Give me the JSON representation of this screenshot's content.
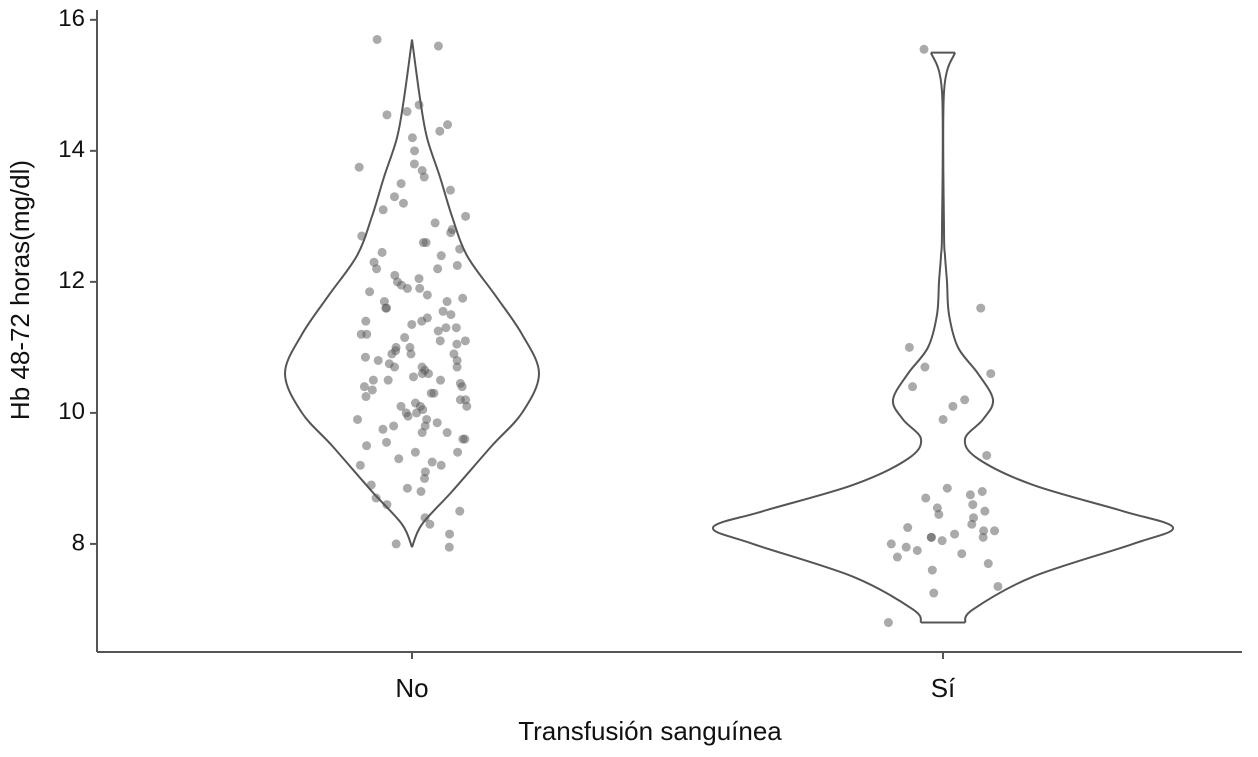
{
  "chart_data": {
    "type": "violin",
    "x_label": "Transfusión sanguínea",
    "y_label": "Hb 48-72 horas(mg/dl)",
    "categories": [
      "No",
      "Sí"
    ],
    "ylim": [
      6.35,
      16.15
    ],
    "yticks": [
      8,
      10,
      12,
      14,
      16
    ],
    "line_color": "#555555",
    "point_color": "#555555",
    "violins": [
      {
        "y": [
          7.95,
          8.3,
          8.8,
          9.5,
          10.0,
          10.6,
          11.2,
          11.8,
          12.4,
          13.0,
          13.6,
          14.2,
          14.8,
          15.7
        ],
        "density": [
          0,
          0.1,
          0.4,
          0.8,
          1.1,
          1.27,
          1.1,
          0.83,
          0.55,
          0.4,
          0.28,
          0.15,
          0.08,
          0
        ],
        "points": [
          15.7,
          15.6,
          14.7,
          14.6,
          14.55,
          14.4,
          14.3,
          14.2,
          14.0,
          13.8,
          13.75,
          13.7,
          13.6,
          13.5,
          13.4,
          13.3,
          13.2,
          13.1,
          13.0,
          12.9,
          12.8,
          12.75,
          12.7,
          12.6,
          12.5,
          12.45,
          12.4,
          12.3,
          12.25,
          12.2,
          12.1,
          12.05,
          12.0,
          11.95,
          11.9,
          11.85,
          11.8,
          11.75,
          11.7,
          11.6,
          11.55,
          11.5,
          11.45,
          11.4,
          11.35,
          11.3,
          11.25,
          11.2,
          11.15,
          11.1,
          11.05,
          11.0,
          10.95,
          10.9,
          10.85,
          10.8,
          10.75,
          10.7,
          10.65,
          10.6,
          10.55,
          10.5,
          10.45,
          10.4,
          10.35,
          10.3,
          10.25,
          10.2,
          10.15,
          10.1,
          10.05,
          10.0,
          9.95,
          9.9,
          9.85,
          9.8,
          9.75,
          9.7,
          9.6,
          9.55,
          9.5,
          9.4,
          9.3,
          9.25,
          9.2,
          9.1,
          9.0,
          8.9,
          8.85,
          8.8,
          8.7,
          8.6,
          8.5,
          8.4,
          8.3,
          8.15,
          8.0,
          7.95,
          11.9,
          11.6,
          11.4,
          11.2,
          11.0,
          10.9,
          10.8,
          10.7,
          10.6,
          10.5,
          10.4,
          10.3,
          10.2,
          10.1,
          10.0,
          9.9,
          9.8,
          9.6,
          9.4,
          9.2,
          11.7,
          11.3,
          10.9,
          10.5,
          10.1,
          9.7,
          12.2,
          12.6,
          11.1,
          10.7
        ]
      },
      {
        "y": [
          6.8,
          7.0,
          7.5,
          8.0,
          8.25,
          8.5,
          8.9,
          9.3,
          9.6,
          9.9,
          10.2,
          10.6,
          11.0,
          11.5,
          12.0,
          12.4,
          12.8,
          14.9,
          15.5
        ],
        "density": [
          0.22,
          0.3,
          0.9,
          1.9,
          2.3,
          1.8,
          0.9,
          0.35,
          0.22,
          0.4,
          0.5,
          0.35,
          0.15,
          0.06,
          0.04,
          0.02,
          0.01,
          0.01,
          0.12
        ],
        "points": [
          15.55,
          11.6,
          11.0,
          10.7,
          10.6,
          10.4,
          10.2,
          10.1,
          9.9,
          9.35,
          8.8,
          8.85,
          8.75,
          8.7,
          8.6,
          8.55,
          8.5,
          8.45,
          8.4,
          8.3,
          8.25,
          8.2,
          8.2,
          8.15,
          8.1,
          8.1,
          8.1,
          8.05,
          8.0,
          7.95,
          7.9,
          7.85,
          7.8,
          7.7,
          7.6,
          7.35,
          7.25,
          6.8
        ]
      }
    ]
  }
}
